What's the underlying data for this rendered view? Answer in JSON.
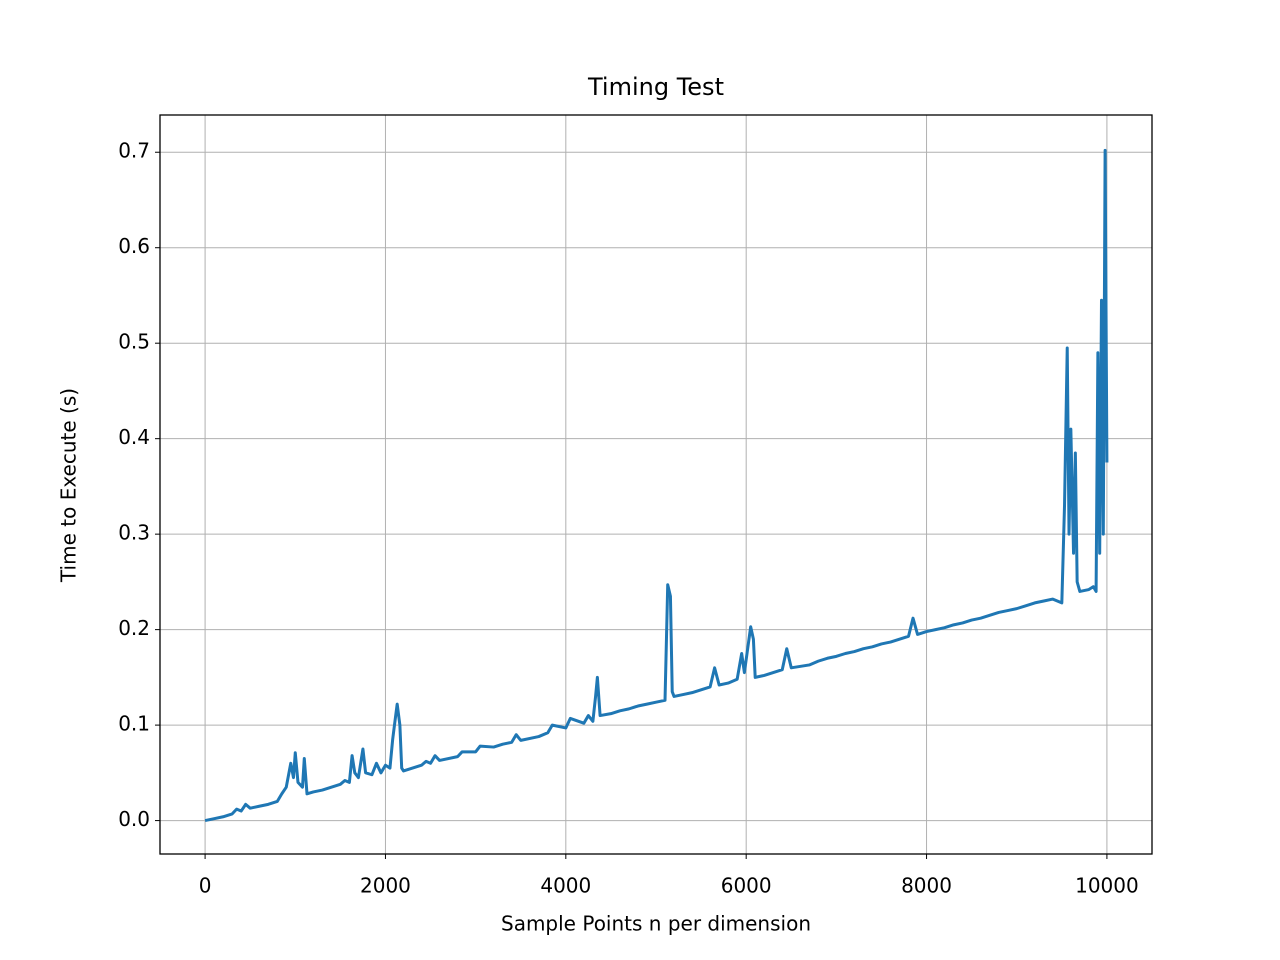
{
  "chart_data": {
    "type": "line",
    "title": "Timing Test",
    "xlabel": "Sample Points n per dimension",
    "ylabel": "Time to Execute (s)",
    "xlim": [
      -500,
      10500
    ],
    "ylim": [
      -0.035,
      0.739
    ],
    "xticks": [
      0,
      2000,
      4000,
      6000,
      8000,
      10000
    ],
    "yticks": [
      {
        "value": 0,
        "label": "0.0"
      },
      0.1,
      0.2,
      0.3,
      0.4,
      0.5,
      0.6,
      0.7
    ],
    "grid": true,
    "x": [
      0,
      100,
      200,
      300,
      350,
      400,
      450,
      500,
      600,
      700,
      800,
      850,
      900,
      950,
      980,
      1000,
      1030,
      1080,
      1100,
      1130,
      1200,
      1300,
      1400,
      1500,
      1550,
      1600,
      1630,
      1660,
      1700,
      1750,
      1780,
      1850,
      1900,
      1950,
      2000,
      2050,
      2080,
      2100,
      2130,
      2160,
      2180,
      2200,
      2300,
      2400,
      2450,
      2500,
      2550,
      2600,
      2800,
      2850,
      3000,
      3050,
      3200,
      3300,
      3400,
      3450,
      3500,
      3700,
      3800,
      3850,
      4000,
      4050,
      4200,
      4250,
      4300,
      4330,
      4350,
      4380,
      4500,
      4600,
      4700,
      4800,
      4900,
      5000,
      5100,
      5130,
      5160,
      5180,
      5200,
      5300,
      5400,
      5500,
      5600,
      5650,
      5700,
      5800,
      5900,
      5950,
      5980,
      6050,
      6080,
      6100,
      6200,
      6300,
      6400,
      6450,
      6500,
      6700,
      6800,
      6900,
      7000,
      7100,
      7200,
      7300,
      7400,
      7500,
      7600,
      7700,
      7800,
      7850,
      7900,
      8000,
      8100,
      8200,
      8300,
      8400,
      8500,
      8600,
      8700,
      8800,
      8900,
      9000,
      9100,
      9200,
      9300,
      9400,
      9500,
      9530,
      9560,
      9580,
      9600,
      9630,
      9650,
      9670,
      9700,
      9800,
      9850,
      9880,
      9900,
      9920,
      9940,
      9960,
      9980,
      10000
    ],
    "series": [
      {
        "color": "#1f77b4",
        "values": [
          0,
          0.002,
          0.004,
          0.007,
          0.012,
          0.01,
          0.017,
          0.013,
          0.015,
          0.017,
          0.02,
          0.028,
          0.035,
          0.06,
          0.045,
          0.071,
          0.04,
          0.035,
          0.065,
          0.028,
          0.03,
          0.032,
          0.035,
          0.038,
          0.042,
          0.04,
          0.068,
          0.05,
          0.045,
          0.075,
          0.05,
          0.048,
          0.06,
          0.05,
          0.058,
          0.055,
          0.085,
          0.1,
          0.122,
          0.1,
          0.055,
          0.052,
          0.055,
          0.058,
          0.062,
          0.06,
          0.068,
          0.063,
          0.067,
          0.072,
          0.072,
          0.078,
          0.077,
          0.08,
          0.082,
          0.09,
          0.084,
          0.088,
          0.092,
          0.1,
          0.097,
          0.107,
          0.102,
          0.11,
          0.104,
          0.13,
          0.15,
          0.11,
          0.112,
          0.115,
          0.117,
          0.12,
          0.122,
          0.124,
          0.126,
          0.247,
          0.235,
          0.135,
          0.13,
          0.132,
          0.134,
          0.137,
          0.14,
          0.16,
          0.142,
          0.144,
          0.148,
          0.175,
          0.155,
          0.203,
          0.19,
          0.15,
          0.152,
          0.155,
          0.158,
          0.18,
          0.16,
          0.163,
          0.167,
          0.17,
          0.172,
          0.175,
          0.177,
          0.18,
          0.182,
          0.185,
          0.187,
          0.19,
          0.193,
          0.212,
          0.195,
          0.198,
          0.2,
          0.202,
          0.205,
          0.207,
          0.21,
          0.212,
          0.215,
          0.218,
          0.22,
          0.222,
          0.225,
          0.228,
          0.23,
          0.232,
          0.228,
          0.33,
          0.495,
          0.3,
          0.41,
          0.28,
          0.385,
          0.25,
          0.24,
          0.242,
          0.245,
          0.24,
          0.49,
          0.28,
          0.545,
          0.3,
          0.702,
          0.375
        ]
      }
    ]
  }
}
